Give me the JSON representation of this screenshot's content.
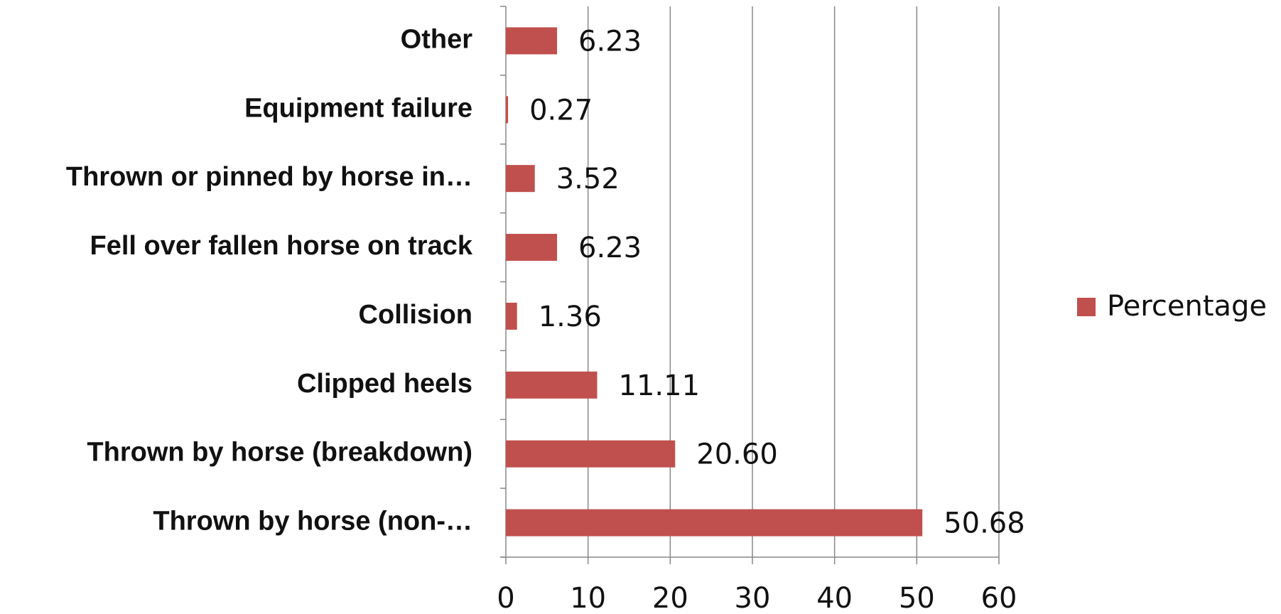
{
  "chart_data": {
    "type": "bar",
    "orientation": "horizontal",
    "categories": [
      "Thrown by horse (non-…",
      "Thrown by horse (breakdown)",
      "Clipped heels",
      "Collision",
      "Fell over fallen horse on track",
      "Thrown or pinned by horse in…",
      "Equipment failure",
      "Other"
    ],
    "series": [
      {
        "name": "Percentage",
        "color": "#c0504d",
        "values": [
          50.68,
          20.6,
          11.11,
          1.36,
          6.23,
          3.52,
          0.27,
          6.23
        ],
        "value_labels": [
          "50.68",
          "20.60",
          "11.11",
          "1.36",
          "6.23",
          "3.52",
          "0.27",
          "6.23"
        ]
      }
    ],
    "xlim": [
      0,
      60
    ],
    "xticks": [
      0,
      10,
      20,
      30,
      40,
      50,
      60
    ],
    "grid": true,
    "legend": "right"
  }
}
